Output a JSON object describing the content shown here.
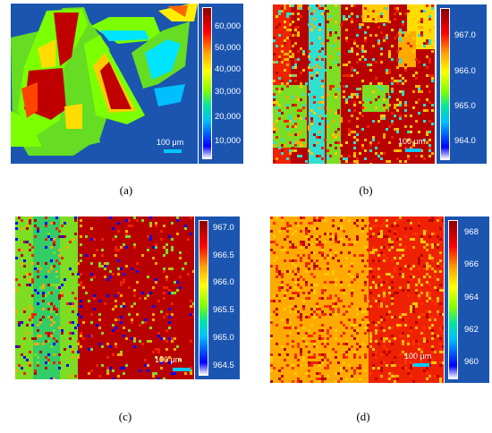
{
  "panels": {
    "a": {
      "caption": "(a)",
      "scale_label": "100 μm",
      "ticks": [
        "60,000",
        "50,000",
        "40,000",
        "30,000",
        "20,000",
        "10,000"
      ]
    },
    "b": {
      "caption": "(b)",
      "scale_label": "100 μm",
      "ticks": [
        "967.0",
        "966.0",
        "965.0",
        "964.0"
      ]
    },
    "c": {
      "caption": "(c)",
      "scale_label": "100 μm",
      "ticks": [
        "967.0",
        "966.5",
        "966.0",
        "965.5",
        "965.0",
        "964.5"
      ]
    },
    "d": {
      "caption": "(d)",
      "scale_label": "100 μm",
      "ticks": [
        "968",
        "966",
        "964",
        "962",
        "960"
      ]
    }
  },
  "colors": {
    "background": "#1b55b0",
    "scale_bar": "#00c8ff"
  }
}
